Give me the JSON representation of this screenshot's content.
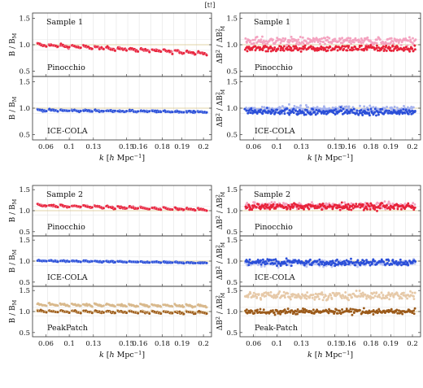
{
  "top_label": "[t!]",
  "chart_data": [
    {
      "id": "s1_bispectrum",
      "type": "scatter",
      "annotation": "Sample 1",
      "ylabel": "B / B_M",
      "xlabel": "k [h Mpc^-1]",
      "xticks": [
        "0.06",
        "0.1",
        "0.13",
        "0.15",
        "0.16",
        "0.18",
        "0.19",
        "0.2"
      ],
      "panels": [
        {
          "label": "Pinocchio",
          "ylim": [
            0.4,
            1.6
          ],
          "yticks": [
            0.5,
            1.0,
            1.5
          ],
          "colors": [
            "#e8233a",
            "#f07088"
          ],
          "start": 0.99,
          "end": 0.84,
          "segment_slope": -0.05,
          "scatter": 0.02
        },
        {
          "label": "ICE-COLA",
          "ylim": [
            0.4,
            1.6
          ],
          "yticks": [
            0.5,
            1.0,
            1.5
          ],
          "colors": [
            "#2b4fd8",
            "#6f8ae8"
          ],
          "start": 0.94,
          "end": 0.91,
          "segment_slope": -0.02,
          "scatter": 0.015
        }
      ]
    },
    {
      "id": "s1_variance",
      "type": "scatter",
      "annotation": "Sample 1",
      "ylabel": "ΔB² / ΔB²_M",
      "xlabel": "k [h Mpc^-1]",
      "xticks": [
        "0.06",
        "0.1",
        "0.13",
        "0.15",
        "0.16",
        "0.18",
        "0.19",
        "0.2"
      ],
      "panels": [
        {
          "label": "Pinocchio",
          "ylim": [
            0.4,
            1.6
          ],
          "yticks": [
            0.5,
            1.0,
            1.5
          ],
          "series": [
            {
              "name": "",
              "color": "#f4a3c0",
              "mean": 1.07,
              "scatter": 0.07
            },
            {
              "name": "",
              "color": "#e8233a",
              "mean": 0.93,
              "scatter": 0.06
            }
          ]
        },
        {
          "label": "ICE-COLA",
          "ylim": [
            0.4,
            1.6
          ],
          "yticks": [
            0.5,
            1.0,
            1.5
          ],
          "series": [
            {
              "name": "",
              "color": "#a6b3ee",
              "mean": 0.98,
              "scatter": 0.06
            },
            {
              "name": "",
              "color": "#2b4fd8",
              "mean": 0.93,
              "scatter": 0.06
            }
          ]
        }
      ]
    },
    {
      "id": "s2_bispectrum",
      "type": "scatter",
      "annotation": "Sample 2",
      "ylabel": "B / B_M",
      "xlabel": "k [h Mpc^-1]",
      "xticks": [
        "0.06",
        "0.1",
        "0.13",
        "0.15",
        "0.16",
        "0.18",
        "0.19",
        "0.2"
      ],
      "panels": [
        {
          "label": "Pinocchio",
          "ylim": [
            0.4,
            1.6
          ],
          "yticks": [
            0.5,
            1.0,
            1.5
          ],
          "colors": [
            "#e8233a",
            "#f07088"
          ],
          "start": 1.12,
          "end": 1.02,
          "segment_slope": -0.05,
          "scatter": 0.02
        },
        {
          "label": "ICE-COLA",
          "ylim": [
            0.4,
            1.6
          ],
          "yticks": [
            0.5,
            1.0,
            1.5
          ],
          "colors": [
            "#2b4fd8",
            "#6f8ae8"
          ],
          "start": 0.99,
          "end": 0.94,
          "segment_slope": -0.02,
          "scatter": 0.015
        },
        {
          "label": "PeakPatch",
          "ylim": [
            0.4,
            1.6
          ],
          "yticks": [
            0.5,
            1.0,
            1.5
          ],
          "colors": [
            "#9b5a1a",
            "#d9b98c"
          ],
          "start": 1.0,
          "end": 0.97,
          "segment_slope": -0.05,
          "scatter": 0.02,
          "upper_band": {
            "color": "#d9b98c",
            "offset": 0.16
          }
        }
      ]
    },
    {
      "id": "s2_variance",
      "type": "scatter",
      "annotation": "Sample 2",
      "ylabel": "ΔB² / ΔB²_M",
      "xlabel": "k [h Mpc^-1]",
      "xticks": [
        "0.06",
        "0.1",
        "0.13",
        "0.15",
        "0.16",
        "0.18",
        "0.19",
        "0.2"
      ],
      "panels": [
        {
          "label": "Pinocchio",
          "ylim": [
            0.4,
            1.6
          ],
          "yticks": [
            0.5,
            1.0,
            1.5
          ],
          "series": [
            {
              "name": "",
              "color": "#f4a3c0",
              "mean": 1.12,
              "scatter": 0.07
            },
            {
              "name": "",
              "color": "#e8233a",
              "mean": 1.1,
              "scatter": 0.08
            }
          ]
        },
        {
          "label": "ICE-COLA",
          "ylim": [
            0.4,
            1.6
          ],
          "yticks": [
            0.5,
            1.0,
            1.5
          ],
          "series": [
            {
              "name": "",
              "color": "#b9c3f2",
              "mean": 0.95,
              "scatter": 0.07
            },
            {
              "name": "",
              "color": "#2b4fd8",
              "mean": 0.97,
              "scatter": 0.07
            }
          ]
        },
        {
          "label": "Peak-Patch",
          "ylim": [
            0.4,
            1.6
          ],
          "yticks": [
            0.5,
            1.0,
            1.5
          ],
          "series": [
            {
              "name": "",
              "color": "#e6c9a8",
              "mean": 1.38,
              "scatter": 0.09
            },
            {
              "name": "",
              "color": "#9b5a1a",
              "mean": 1.0,
              "scatter": 0.06
            }
          ]
        }
      ]
    }
  ]
}
